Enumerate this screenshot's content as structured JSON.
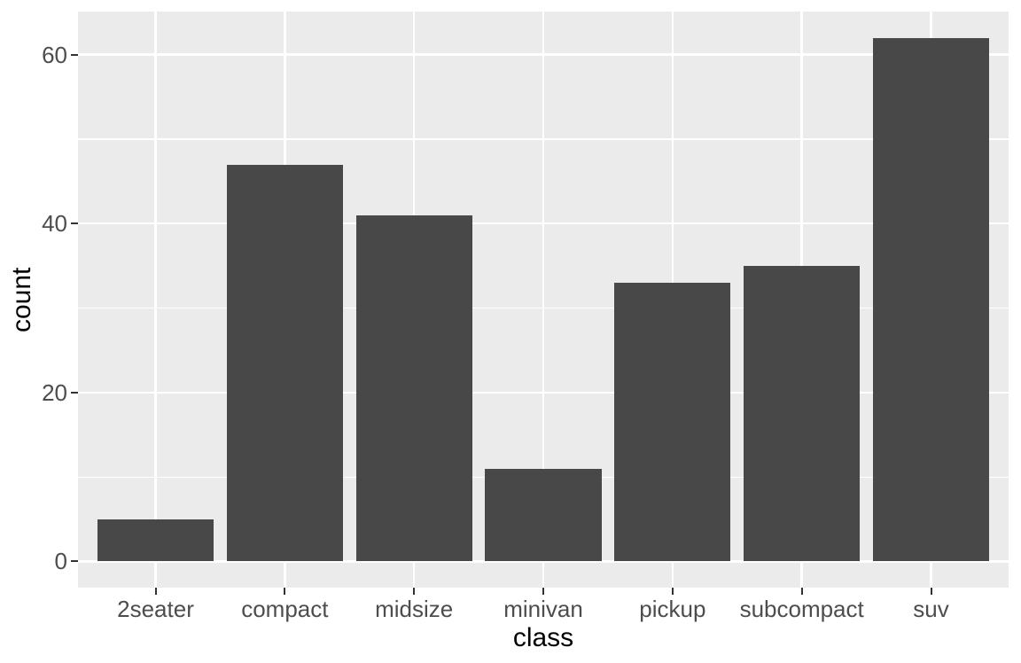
{
  "chart_data": {
    "type": "bar",
    "title": "",
    "xlabel": "class",
    "ylabel": "count",
    "categories": [
      "2seater",
      "compact",
      "midsize",
      "minivan",
      "pickup",
      "subcompact",
      "suv"
    ],
    "values": [
      5,
      47,
      41,
      11,
      33,
      35,
      62
    ],
    "yticks": [
      0,
      20,
      40,
      60
    ],
    "yticks_minor": [
      10,
      30,
      50
    ],
    "ylim": [
      -3.1,
      65.1
    ],
    "band_padding": 0.6,
    "bar_width_fraction": 0.9,
    "grid": "major and minor horizontal, major vertical at category centers",
    "legend": "none",
    "colors": {
      "bar": "#484848",
      "panel_background": "#EBEBEB",
      "gridline": "#FFFFFF",
      "axis_text": "#4D4D4D",
      "axis_title": "#000000",
      "tick_mark": "#333333",
      "background": "#FFFFFF"
    }
  }
}
